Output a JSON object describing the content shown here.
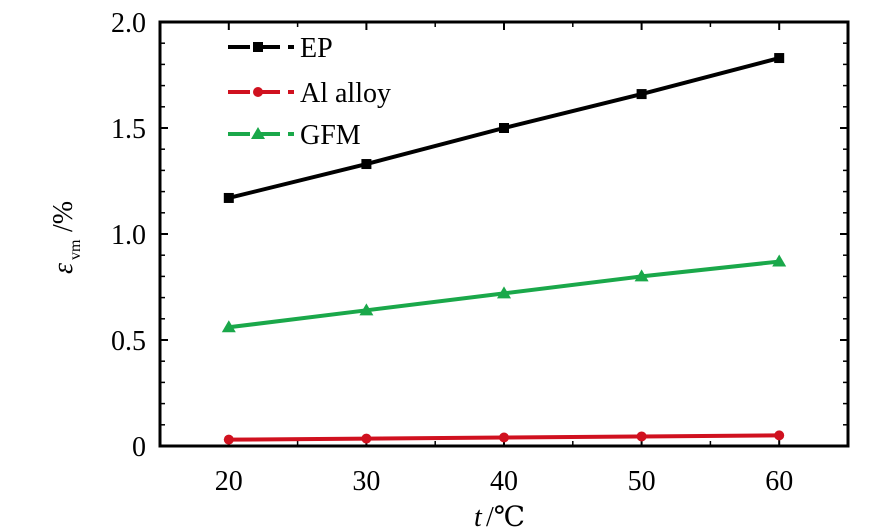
{
  "chart_data": {
    "type": "line",
    "x": [
      20,
      30,
      40,
      50,
      60
    ],
    "xlim": [
      15,
      65
    ],
    "ylim": [
      0,
      2.0
    ],
    "xticks": [
      "20",
      "30",
      "40",
      "50",
      "60"
    ],
    "yticks": [
      "0",
      "0.5",
      "1.0",
      "1.5",
      "2.0"
    ],
    "xlabel": {
      "var": "t",
      "unit": "/℃"
    },
    "ylabel": {
      "var": "ε",
      "sub": "vm",
      "unit": "/%"
    },
    "grid": false,
    "legend_position": "top-left",
    "series": [
      {
        "name": "EP",
        "color": "#000000",
        "marker": "square",
        "values": [
          1.17,
          1.33,
          1.5,
          1.66,
          1.83
        ]
      },
      {
        "name": "Al alloy",
        "color": "#d0111f",
        "marker": "circle",
        "values": [
          0.03,
          0.035,
          0.04,
          0.045,
          0.05
        ]
      },
      {
        "name": "GFM",
        "color": "#1aa84a",
        "marker": "triangle",
        "values": [
          0.56,
          0.64,
          0.72,
          0.8,
          0.87
        ]
      }
    ]
  }
}
